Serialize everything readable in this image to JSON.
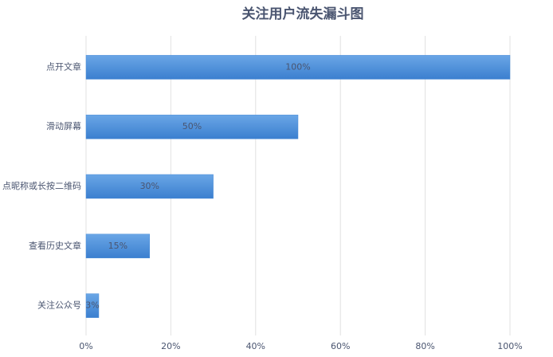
{
  "chart_data": {
    "type": "bar",
    "orientation": "horizontal",
    "title": "关注用户流失漏斗图",
    "categories": [
      "点开文章",
      "滑动屏幕",
      "点昵称或长按二维码",
      "查看历史文章",
      "关注公众号"
    ],
    "values": [
      100,
      50,
      30,
      15,
      3
    ],
    "value_labels": [
      "100%",
      "50%",
      "30%",
      "15%",
      "3%"
    ],
    "color": "#4a8cd8",
    "xlim": [
      0,
      100
    ],
    "xticks": [
      {
        "value": 0,
        "label": "0%"
      },
      {
        "value": 20,
        "label": "20%"
      },
      {
        "value": 40,
        "label": "40%"
      },
      {
        "value": 60,
        "label": "60%"
      },
      {
        "value": 80,
        "label": "80%"
      },
      {
        "value": 100,
        "label": "100%"
      }
    ],
    "grid": true
  }
}
